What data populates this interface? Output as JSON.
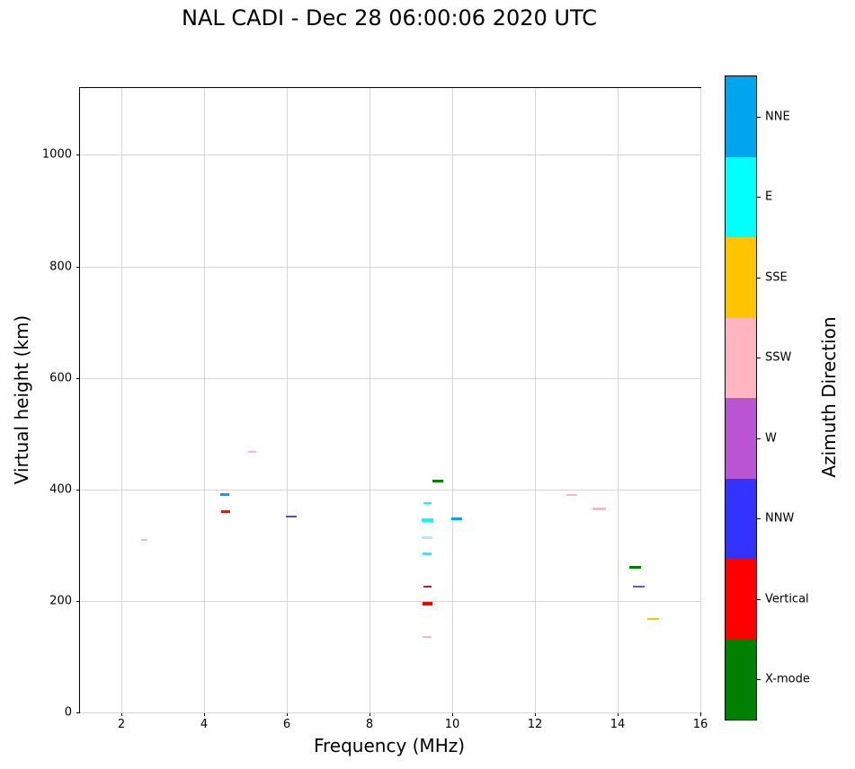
{
  "chart_data": {
    "type": "scatter",
    "title": "NAL CADI - Dec 28 06:00:06 2020 UTC",
    "xlabel": "Frequency (MHz)",
    "ylabel": "Virtual height (km)",
    "xlim": [
      1,
      16
    ],
    "ylim": [
      0,
      1120
    ],
    "xticks": [
      2,
      4,
      6,
      8,
      10,
      12,
      14,
      16
    ],
    "yticks": [
      0,
      200,
      400,
      600,
      800,
      1000
    ],
    "grid": true,
    "grid_color": "#d6d6d6",
    "marker_shape": "horizontal-dash",
    "colorbar": {
      "label": "Azimuth Direction",
      "segments_top_to_bottom": [
        {
          "label": "NNE",
          "color": "#00a6ed"
        },
        {
          "label": "E",
          "color": "#00ffff"
        },
        {
          "label": "SSE",
          "color": "#ffc400"
        },
        {
          "label": "SSW",
          "color": "#ffb6c1"
        },
        {
          "label": "W",
          "color": "#ba55d3"
        },
        {
          "label": "NNW",
          "color": "#3333ff"
        },
        {
          "label": "Vertical",
          "color": "#ff0000"
        },
        {
          "label": "X-mode",
          "color": "#008000"
        }
      ]
    },
    "points": [
      {
        "x": 2.55,
        "y": 310,
        "azimuth": "SSW",
        "w": 7,
        "h": 2
      },
      {
        "x": 4.49,
        "y": 390,
        "azimuth": "NNE",
        "w": 10,
        "h": 3
      },
      {
        "x": 4.53,
        "y": 360,
        "azimuth": "Vertical",
        "w": 10,
        "h": 3,
        "color": "#cc1f1f"
      },
      {
        "x": 5.17,
        "y": 468,
        "azimuth": "SSW",
        "w": 9,
        "h": 2
      },
      {
        "x": 6.1,
        "y": 351,
        "azimuth": "NNW",
        "w": 12,
        "h": 2,
        "color": "#4d4dd0"
      },
      {
        "x": 9.65,
        "y": 415,
        "azimuth": "X-mode",
        "w": 12,
        "h": 3
      },
      {
        "x": 9.4,
        "y": 375,
        "azimuth": "E",
        "w": 9,
        "h": 2
      },
      {
        "x": 9.4,
        "y": 345,
        "azimuth": "E",
        "w": 13,
        "h": 4
      },
      {
        "x": 10.11,
        "y": 347,
        "azimuth": "NNE",
        "w": 12,
        "h": 3
      },
      {
        "x": 9.4,
        "y": 314,
        "azimuth": "E",
        "w": 12,
        "h": 3,
        "color": "#aeeeee"
      },
      {
        "x": 9.4,
        "y": 285,
        "azimuth": "E",
        "w": 10,
        "h": 3
      },
      {
        "x": 9.4,
        "y": 226,
        "azimuth": "Vertical",
        "w": 9,
        "h": 2,
        "color": "#b22222"
      },
      {
        "x": 9.4,
        "y": 195,
        "azimuth": "Vertical",
        "w": 11,
        "h": 4
      },
      {
        "x": 9.4,
        "y": 135,
        "azimuth": "SSW",
        "w": 10,
        "h": 2
      },
      {
        "x": 12.9,
        "y": 390,
        "azimuth": "SSW",
        "w": 12,
        "h": 2
      },
      {
        "x": 13.55,
        "y": 365,
        "azimuth": "SSW",
        "w": 15,
        "h": 3
      },
      {
        "x": 14.43,
        "y": 260,
        "azimuth": "X-mode",
        "w": 13,
        "h": 3
      },
      {
        "x": 14.52,
        "y": 225,
        "azimuth": "NNW",
        "w": 13,
        "h": 2,
        "color": "#5a5ace"
      },
      {
        "x": 14.85,
        "y": 168,
        "azimuth": "SSE",
        "w": 13,
        "h": 2
      }
    ]
  }
}
